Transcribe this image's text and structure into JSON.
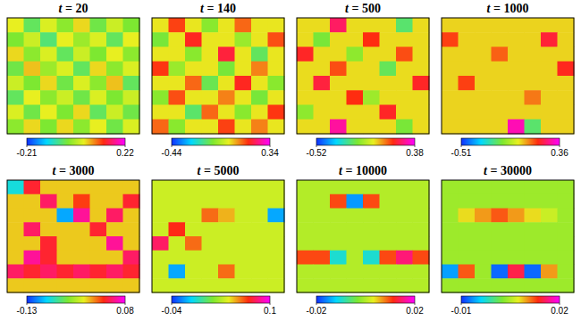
{
  "chart_data": [
    {
      "type": "heatmap",
      "title": "t = 20",
      "colorbar_range": [
        -0.21,
        0.22
      ],
      "colorbar_ticks": [
        -0.21,
        0.22
      ],
      "cells": [
        [
          0.04,
          -0.05,
          0.03,
          -0.02,
          0.05,
          -0.04,
          0.02,
          -0.03
        ],
        [
          -0.03,
          0.02,
          -0.06,
          0.04,
          -0.01,
          0.03,
          -0.05,
          0.04
        ],
        [
          0.05,
          -0.02,
          0.03,
          -0.05,
          0.02,
          -0.03,
          0.04,
          -0.02
        ],
        [
          -0.04,
          0.06,
          -0.01,
          0.03,
          -0.05,
          0.05,
          -0.02,
          0.03
        ],
        [
          0.02,
          -0.03,
          0.05,
          -0.04,
          0.03,
          -0.02,
          0.06,
          -0.05
        ],
        [
          -0.05,
          0.04,
          -0.02,
          0.02,
          -0.04,
          0.03,
          -0.03,
          0.02
        ],
        [
          0.03,
          -0.04,
          0.04,
          -0.03,
          0.05,
          -0.05,
          0.02,
          -0.04
        ],
        [
          -0.02,
          0.05,
          -0.03,
          0.05,
          -0.02,
          0.04,
          -0.04,
          0.03
        ]
      ]
    },
    {
      "type": "heatmap",
      "title": "t = 140",
      "colorbar_range": [
        -0.44,
        0.34
      ],
      "colorbar_ticks": [
        -0.44,
        0.34
      ],
      "cells": [
        [
          0.02,
          0.15,
          0.02,
          -0.1,
          0.02,
          0.12,
          0.02,
          0.02
        ],
        [
          -0.12,
          0.02,
          0.18,
          0.02,
          0.02,
          -0.08,
          0.02,
          0.14
        ],
        [
          0.02,
          0.02,
          -0.1,
          0.02,
          0.2,
          0.02,
          -0.15,
          0.02
        ],
        [
          0.16,
          -0.08,
          0.02,
          0.02,
          -0.12,
          0.02,
          0.1,
          0.02
        ],
        [
          0.02,
          0.02,
          0.12,
          -0.14,
          0.02,
          0.18,
          0.02,
          -0.1
        ],
        [
          -0.1,
          0.14,
          0.02,
          0.02,
          0.1,
          0.02,
          -0.12,
          0.02
        ],
        [
          0.02,
          0.02,
          -0.16,
          0.12,
          0.02,
          -0.1,
          0.02,
          0.16
        ],
        [
          0.12,
          -0.1,
          0.02,
          0.02,
          0.15,
          0.02,
          0.1,
          0.02
        ]
      ]
    },
    {
      "type": "heatmap",
      "title": "t = 500",
      "colorbar_range": [
        -0.52,
        0.38
      ],
      "colorbar_ticks": [
        -0.52,
        0.38
      ],
      "cells": [
        [
          0.02,
          0.02,
          0.25,
          0.02,
          0.02,
          0.02,
          -0.2,
          0.02
        ],
        [
          0.02,
          -0.15,
          0.02,
          0.02,
          0.18,
          0.02,
          0.02,
          0.02
        ],
        [
          0.2,
          0.02,
          0.02,
          -0.12,
          0.02,
          0.02,
          0.15,
          0.02
        ],
        [
          0.02,
          0.02,
          0.15,
          0.02,
          0.02,
          -0.18,
          0.02,
          0.02
        ],
        [
          0.02,
          0.22,
          0.02,
          0.02,
          0.02,
          0.02,
          0.02,
          0.2
        ],
        [
          0.02,
          0.02,
          0.02,
          0.18,
          -0.1,
          0.02,
          0.02,
          0.02
        ],
        [
          -0.12,
          0.02,
          0.02,
          0.02,
          0.02,
          0.2,
          0.02,
          0.02
        ],
        [
          0.02,
          0.02,
          0.3,
          0.02,
          0.02,
          0.02,
          -0.15,
          0.02
        ]
      ]
    },
    {
      "type": "heatmap",
      "title": "t = 1000",
      "colorbar_range": [
        -0.51,
        0.36
      ],
      "colorbar_ticks": [
        -0.51,
        0.36
      ],
      "cells": [
        [
          0.02,
          0.02,
          0.02,
          0.02,
          0.02,
          0.02,
          0.02,
          0.02
        ],
        [
          0.15,
          0.02,
          0.02,
          0.02,
          0.02,
          0.02,
          0.2,
          0.02
        ],
        [
          0.02,
          0.02,
          0.02,
          0.12,
          0.02,
          0.02,
          0.02,
          0.02
        ],
        [
          0.02,
          0.02,
          0.02,
          0.02,
          0.02,
          0.02,
          0.02,
          0.18
        ],
        [
          0.02,
          0.15,
          0.02,
          0.02,
          0.02,
          0.02,
          0.02,
          0.02
        ],
        [
          0.02,
          0.02,
          0.02,
          0.02,
          0.02,
          0.1,
          0.02,
          0.02
        ],
        [
          0.02,
          0.02,
          0.02,
          0.02,
          0.02,
          0.02,
          0.02,
          0.02
        ],
        [
          0.02,
          0.02,
          0.02,
          0.02,
          0.3,
          -0.2,
          0.02,
          0.02
        ]
      ]
    },
    {
      "type": "heatmap",
      "title": "t = 3000",
      "colorbar_range": [
        -0.13,
        0.08
      ],
      "colorbar_ticks": [
        -0.13,
        0.08
      ],
      "cells": [
        [
          -0.08,
          0.04,
          0,
          0,
          0,
          0,
          0,
          0
        ],
        [
          0,
          0,
          0.05,
          0,
          0.03,
          0,
          0,
          0.04
        ],
        [
          0,
          0,
          0,
          -0.1,
          0.06,
          0,
          0.05,
          0
        ],
        [
          0,
          0.05,
          0,
          0,
          0,
          0.04,
          0,
          0
        ],
        [
          0,
          0,
          0.04,
          0,
          0,
          0,
          0.06,
          0
        ],
        [
          0,
          0.06,
          0.04,
          0,
          0,
          0,
          0,
          0.05
        ],
        [
          0.05,
          0.04,
          0.05,
          0.04,
          0.05,
          0.04,
          0.05,
          0.04
        ],
        [
          0,
          0,
          0,
          0,
          0,
          0,
          0,
          0
        ]
      ]
    },
    {
      "type": "heatmap",
      "title": "t = 5000",
      "colorbar_range": [
        -0.04,
        0.1
      ],
      "colorbar_ticks": [
        -0.04,
        0.1
      ],
      "cells": [
        [
          0.035,
          0.035,
          0.035,
          0.035,
          0.035,
          0.035,
          0.035,
          0.035
        ],
        [
          0.035,
          0.035,
          0.035,
          0.035,
          0.035,
          0.035,
          0.035,
          0.035
        ],
        [
          0.035,
          0.035,
          0.035,
          0.06,
          0.05,
          0.035,
          0.035,
          -0.02
        ],
        [
          0.035,
          0.07,
          0.035,
          0.035,
          0.035,
          0.035,
          0.035,
          0.035
        ],
        [
          0.08,
          0.035,
          0.06,
          0.035,
          0.035,
          0.035,
          0.035,
          0.035
        ],
        [
          0.035,
          0.035,
          0.035,
          0.035,
          0.035,
          0.035,
          0.035,
          0.035
        ],
        [
          0.035,
          -0.02,
          0.035,
          0.035,
          0.06,
          0.035,
          0.035,
          0.035
        ],
        [
          0.035,
          0.035,
          0.035,
          0.035,
          0.035,
          0.035,
          0.035,
          0.035
        ]
      ]
    },
    {
      "type": "heatmap",
      "title": "t = 10000",
      "colorbar_range": [
        -0.02,
        0.02
      ],
      "colorbar_ticks": [
        -0.02,
        0.02
      ],
      "cells": [
        [
          0,
          0,
          0,
          0,
          0,
          0,
          0,
          0
        ],
        [
          0,
          0,
          0.01,
          -0.015,
          0.01,
          0,
          0,
          0
        ],
        [
          0,
          0,
          0,
          0,
          0,
          0,
          0,
          0
        ],
        [
          0,
          0,
          0,
          0,
          0,
          0,
          0,
          0
        ],
        [
          0,
          0,
          0,
          0,
          0,
          0,
          0,
          0
        ],
        [
          0.01,
          0.01,
          -0.01,
          0,
          -0.01,
          0.01,
          0.015,
          0.01
        ],
        [
          0,
          0,
          0,
          0,
          0,
          0,
          0,
          0
        ],
        [
          0,
          0,
          0,
          0,
          0,
          0,
          0,
          0
        ]
      ]
    },
    {
      "type": "heatmap",
      "title": "t = 30000",
      "colorbar_range": [
        -0.01,
        0.02
      ],
      "colorbar_ticks": [
        -0.01,
        0.02
      ],
      "cells": [
        [
          0.004,
          0.004,
          0.004,
          0.004,
          0.004,
          0.004,
          0.004,
          0.004
        ],
        [
          0.004,
          0.004,
          0.004,
          0.004,
          0.004,
          0.004,
          0.004,
          0.004
        ],
        [
          0.004,
          0.008,
          0.01,
          0.012,
          0.01,
          0.008,
          0.006,
          0.004
        ],
        [
          0.004,
          0.004,
          0.004,
          0.004,
          0.004,
          0.004,
          0.004,
          0.004
        ],
        [
          0.004,
          0.004,
          0.004,
          0.004,
          0.004,
          0.004,
          0.004,
          0.004
        ],
        [
          0.004,
          0.004,
          0.004,
          0.004,
          0.004,
          0.004,
          0.004,
          0.004
        ],
        [
          -0.006,
          0.012,
          0.004,
          -0.008,
          0.015,
          -0.008,
          0.01,
          0.004
        ],
        [
          0.004,
          0.004,
          0.004,
          0.004,
          0.004,
          0.004,
          0.004,
          0.004
        ]
      ]
    }
  ]
}
